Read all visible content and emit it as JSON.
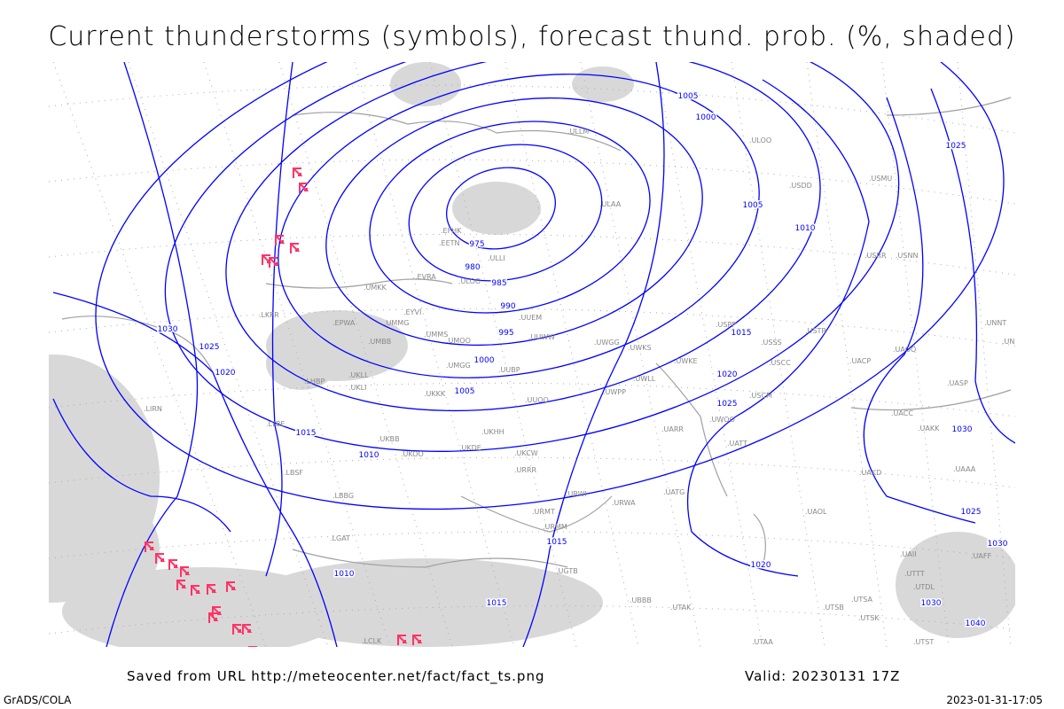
{
  "title": "Current thunderstorms (symbols), forecast thund. prob. (%, shaded)",
  "footer": {
    "source": "Saved from URL http://meteocenter.net/fact/fact_ts.png",
    "valid": "Valid: 20230131 17Z",
    "credit": "GrADS/COLA",
    "timestamp": "2023-01-31-17:05"
  },
  "colors": {
    "isobar": "#0000ff",
    "coast": "#a0a0a0",
    "shading": "#d8d8d8",
    "thunderstorm": "#ff3366"
  },
  "isobar_labels": [
    "975",
    "980",
    "985",
    "990",
    "995",
    "1000",
    "1005",
    "1010",
    "1015",
    "1020",
    "1025",
    "1030",
    "1000",
    "1005",
    "1010",
    "1015",
    "1020",
    "1025",
    "1030",
    "1015",
    "1010",
    "1020",
    "1015",
    "1005",
    "1030",
    "1025",
    "1025",
    "1030",
    "1040"
  ],
  "stations": [
    "EFHK",
    "EETN",
    "EVRA",
    "ULOO",
    "ULLI",
    "ULAA",
    "UMKK",
    "EYVI",
    "UMMG",
    "UMMS",
    "UMOO",
    "UUEM",
    "UUWW",
    "UWGG",
    "UWKS",
    "UMGG",
    "UUBP",
    "UKLL",
    "UKLI",
    "UKKK",
    "UWPP",
    "UWLL",
    "UWKE",
    "UUOO",
    "UKBB",
    "UKHH",
    "UKOO",
    "UKDE",
    "UKCW",
    "URRR",
    "URWI",
    "URWA",
    "UATG",
    "URMT",
    "URMM",
    "UGTB",
    "UBBB",
    "UTAK",
    "UTAA",
    "UATT",
    "UARR",
    "UWOO",
    "ULLM",
    "ULOO",
    "USDD",
    "USSS",
    "USCC",
    "USCM",
    "USTR",
    "UAOO",
    "UACC",
    "UAKK",
    "UAAA",
    "UASP",
    "UNNT",
    "UNBB",
    "UACP",
    "UAKD",
    "UAOL",
    "UAII",
    "UAFF",
    "UTTT",
    "UTSK",
    "UTSB",
    "UTDL",
    "UTSA",
    "UTST",
    "USRR",
    "USNN",
    "USMU",
    "USPP",
    "LKPR",
    "LHBP",
    "LIRN",
    "LYBE",
    "LBSF",
    "LBBG",
    "LGAT",
    "LCLK",
    "EPWA",
    "UMBB"
  ],
  "thunderstorm_symbol": "thunderstorm-icon"
}
